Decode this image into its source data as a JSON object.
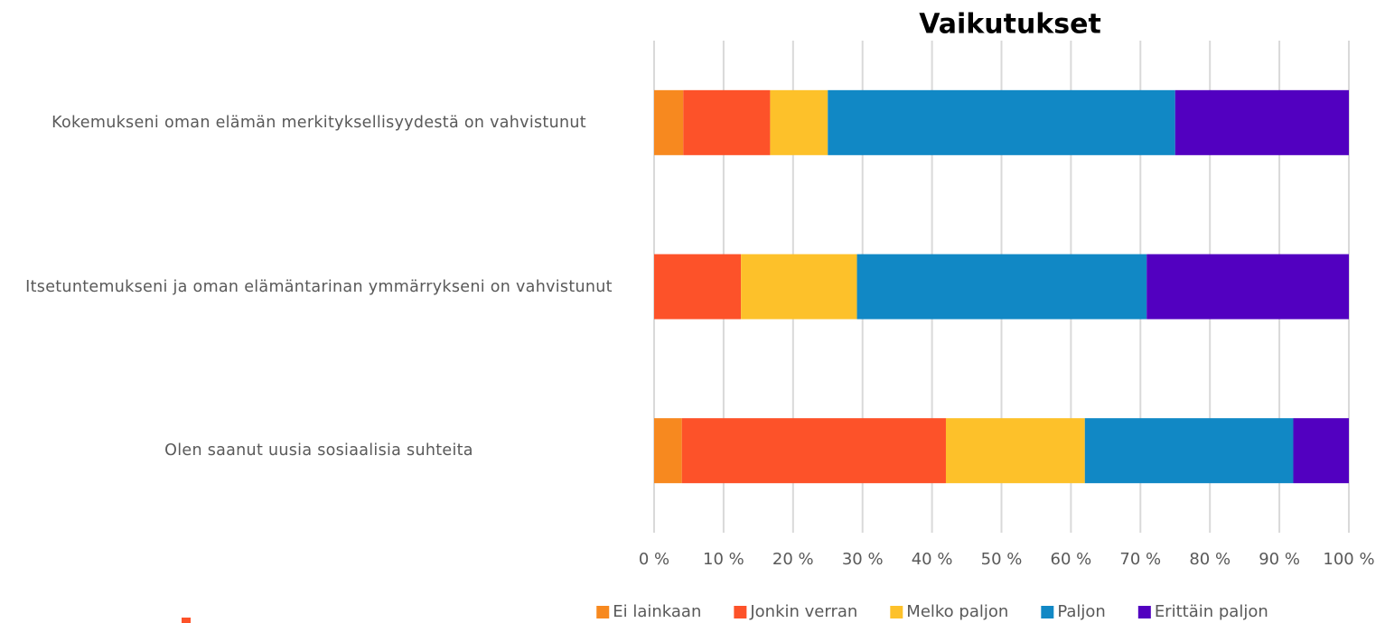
{
  "chart_data": {
    "type": "stacked_bar_horizontal",
    "title": "Vaikutukset",
    "categories": [
      "Kokemukseni oman elämän merkityksellisyydestä on vahvistunut",
      "Itsetuntemukseni ja oman elämäntarinan ymmärrykseni on vahvistunut",
      "Olen saanut uusia sosiaalisia suhteita"
    ],
    "series": [
      {
        "name": "Ei lainkaan",
        "color": "#f7891f",
        "values": [
          4.2,
          0,
          4
        ]
      },
      {
        "name": "Jonkin verran",
        "color": "#fd5229",
        "values": [
          12.5,
          12.5,
          38
        ]
      },
      {
        "name": "Melko paljon",
        "color": "#fdc12a",
        "values": [
          8.3,
          16.7,
          20
        ]
      },
      {
        "name": "Paljon",
        "color": "#1188c5",
        "values": [
          50,
          41.7,
          30
        ]
      },
      {
        "name": "Erittäin paljon",
        "color": "#5200c0",
        "values": [
          25,
          29.1,
          8
        ]
      }
    ],
    "xlim": [
      0,
      100
    ],
    "xticks": [
      {
        "value": 0,
        "label": "0 %"
      },
      {
        "value": 10,
        "label": "10 %"
      },
      {
        "value": 20,
        "label": "20 %"
      },
      {
        "value": 30,
        "label": "30 %"
      },
      {
        "value": 40,
        "label": "40 %"
      },
      {
        "value": 50,
        "label": "50 %"
      },
      {
        "value": 60,
        "label": "60 %"
      },
      {
        "value": 70,
        "label": "70 %"
      },
      {
        "value": 80,
        "label": "80 %"
      },
      {
        "value": 90,
        "label": "90 %"
      },
      {
        "value": 100,
        "label": "100 %"
      }
    ],
    "grid": true,
    "legend": "bottom"
  }
}
